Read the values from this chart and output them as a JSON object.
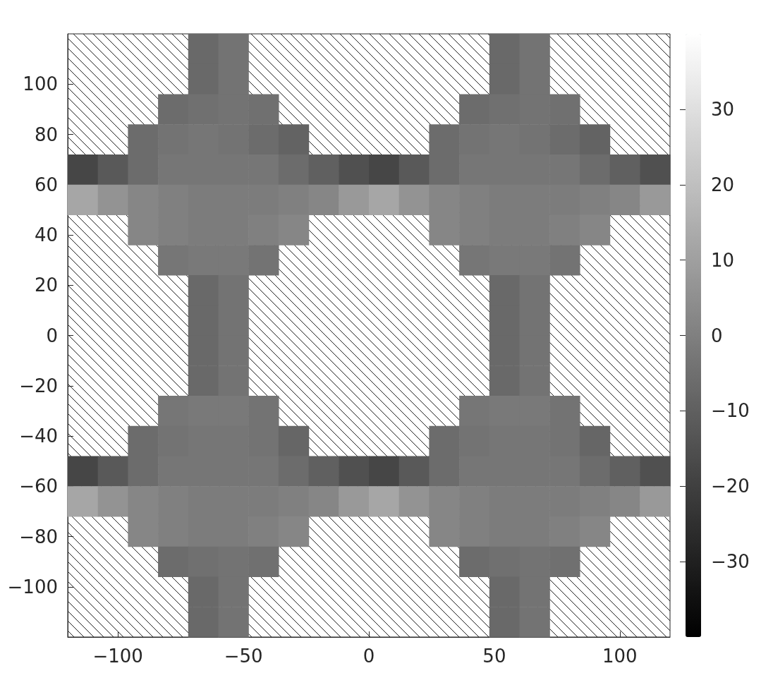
{
  "chart_data": {
    "type": "heatmap",
    "x": [
      -114,
      -102,
      -90,
      -78,
      -66,
      -54,
      -42,
      -30,
      -18,
      -6,
      6,
      18,
      30,
      42,
      54,
      66,
      78,
      90,
      102,
      114
    ],
    "y": [
      114,
      102,
      90,
      78,
      66,
      54,
      42,
      30,
      18,
      6,
      -6,
      -18,
      -30,
      -42,
      -54,
      -66,
      -78,
      -90,
      -102,
      -114
    ],
    "cells": [
      [
        null,
        null,
        null,
        null,
        -7,
        -4,
        null,
        null,
        null,
        null,
        null,
        null,
        null,
        null,
        -7,
        -4,
        null,
        null,
        null,
        null
      ],
      [
        null,
        null,
        null,
        null,
        -7,
        -4,
        null,
        null,
        null,
        null,
        null,
        null,
        null,
        null,
        -7,
        -4,
        null,
        null,
        null,
        null
      ],
      [
        null,
        null,
        null,
        -6,
        -5,
        -4,
        -5,
        null,
        null,
        null,
        null,
        null,
        null,
        -6,
        -5,
        -4,
        -5,
        null,
        null,
        null
      ],
      [
        null,
        null,
        -6,
        -4,
        -3,
        -4,
        -6,
        -9,
        null,
        null,
        null,
        null,
        -6,
        -4,
        -3,
        -4,
        -6,
        -9,
        null,
        null
      ],
      [
        -18,
        -12,
        -6,
        -3,
        -3,
        -3,
        -3,
        -6,
        -10,
        -15,
        -18,
        -12,
        -6,
        -3,
        -3,
        -3,
        -3,
        -6,
        -10,
        -15
      ],
      [
        12,
        6,
        2,
        0,
        -1,
        -1,
        -1,
        0,
        2,
        8,
        12,
        6,
        2,
        0,
        -1,
        -1,
        -1,
        0,
        2,
        8
      ],
      [
        null,
        null,
        2,
        0,
        -1,
        -1,
        0,
        2,
        null,
        null,
        null,
        null,
        2,
        0,
        -1,
        -1,
        0,
        2,
        null,
        null
      ],
      [
        null,
        null,
        null,
        -3,
        -2,
        -2,
        -4,
        null,
        null,
        null,
        null,
        null,
        null,
        -3,
        -2,
        -2,
        -4,
        null,
        null,
        null
      ],
      [
        null,
        null,
        null,
        null,
        -7,
        -4,
        null,
        null,
        null,
        null,
        null,
        null,
        null,
        null,
        -7,
        -4,
        null,
        null,
        null,
        null
      ],
      [
        null,
        null,
        null,
        null,
        -7,
        -4,
        null,
        null,
        null,
        null,
        null,
        null,
        null,
        null,
        -7,
        -4,
        null,
        null,
        null,
        null
      ],
      [
        null,
        null,
        null,
        null,
        -7,
        -4,
        null,
        null,
        null,
        null,
        null,
        null,
        null,
        null,
        -7,
        -4,
        null,
        null,
        null,
        null
      ],
      [
        null,
        null,
        null,
        null,
        -7,
        -4,
        null,
        null,
        null,
        null,
        null,
        null,
        null,
        null,
        -7,
        -4,
        null,
        null,
        null,
        null
      ],
      [
        null,
        null,
        null,
        -3,
        -2,
        -2,
        -4,
        null,
        null,
        null,
        null,
        null,
        null,
        -3,
        -2,
        -2,
        -4,
        null,
        null,
        null
      ],
      [
        null,
        null,
        -6,
        -4,
        -3,
        -3,
        -4,
        -8,
        null,
        null,
        null,
        null,
        -6,
        -4,
        -3,
        -3,
        -4,
        -8,
        null,
        null
      ],
      [
        -18,
        -12,
        -6,
        -3,
        -3,
        -3,
        -3,
        -6,
        -10,
        -15,
        -18,
        -12,
        -6,
        -3,
        -3,
        -3,
        -3,
        -6,
        -10,
        -15
      ],
      [
        12,
        6,
        2,
        0,
        -1,
        -1,
        -1,
        0,
        2,
        8,
        12,
        6,
        2,
        0,
        -1,
        -1,
        -1,
        0,
        2,
        8
      ],
      [
        null,
        null,
        2,
        0,
        -1,
        -1,
        0,
        2,
        null,
        null,
        null,
        null,
        2,
        0,
        -1,
        -1,
        0,
        2,
        null,
        null
      ],
      [
        null,
        null,
        null,
        -6,
        -5,
        -4,
        -5,
        null,
        null,
        null,
        null,
        null,
        null,
        -6,
        -5,
        -4,
        -5,
        null,
        null,
        null
      ],
      [
        null,
        null,
        null,
        null,
        -7,
        -4,
        null,
        null,
        null,
        null,
        null,
        null,
        null,
        null,
        -7,
        -4,
        null,
        null,
        null,
        null
      ],
      [
        null,
        null,
        null,
        null,
        -7,
        -4,
        null,
        null,
        null,
        null,
        null,
        null,
        null,
        null,
        -7,
        -4,
        null,
        null,
        null,
        null
      ]
    ],
    "xlim": [
      -120,
      120
    ],
    "xticks": [
      -100,
      -50,
      0,
      50,
      100
    ],
    "ylim": [
      -120,
      120
    ],
    "yticks": [
      -100,
      -80,
      -60,
      -40,
      -20,
      0,
      20,
      40,
      60,
      80,
      100
    ],
    "clim": [
      -40,
      40
    ],
    "cticks": [
      -30,
      -20,
      -10,
      0,
      10,
      20,
      30
    ]
  }
}
